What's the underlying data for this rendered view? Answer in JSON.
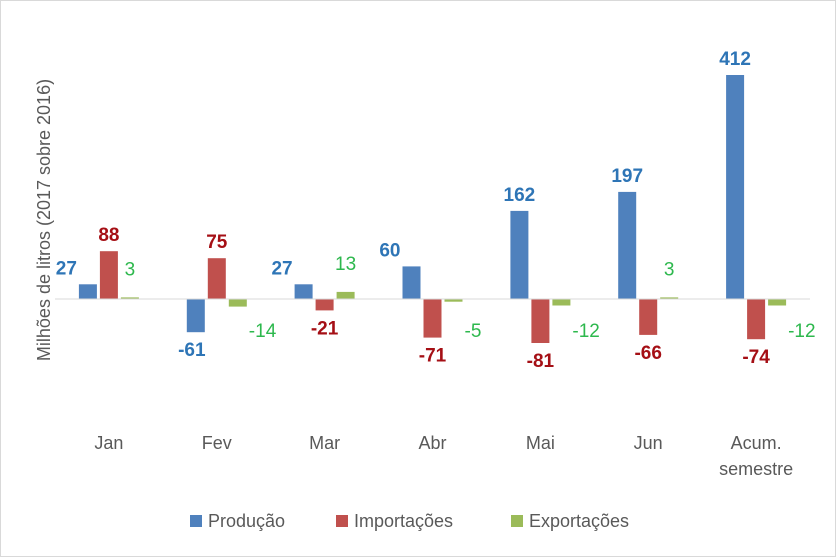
{
  "chart_data": {
    "type": "bar",
    "ylabel": "Milhões de litros (2017 sobre 2016)",
    "categories": [
      "Jan",
      "Fev",
      "Mar",
      "Abr",
      "Mai",
      "Jun",
      [
        "Acum.",
        "semestre"
      ]
    ],
    "series": [
      {
        "name": "Produção",
        "color": "#4f81bd",
        "label_color": "#2e75b6",
        "label_bold": true,
        "values": [
          27,
          -61,
          27,
          60,
          162,
          197,
          412
        ]
      },
      {
        "name": "Importações",
        "color": "#c0504d",
        "label_color": "#a50f15",
        "label_bold": true,
        "values": [
          88,
          75,
          -21,
          -71,
          -81,
          -66,
          -74
        ]
      },
      {
        "name": "Exportações",
        "color": "#9bbb59",
        "label_color": "#2db84d",
        "label_bold": false,
        "values": [
          3,
          -14,
          13,
          -5,
          -12,
          3,
          -12
        ]
      }
    ],
    "legend_position": "bottom",
    "grid": false,
    "ylim": [
      -120,
      425
    ]
  }
}
